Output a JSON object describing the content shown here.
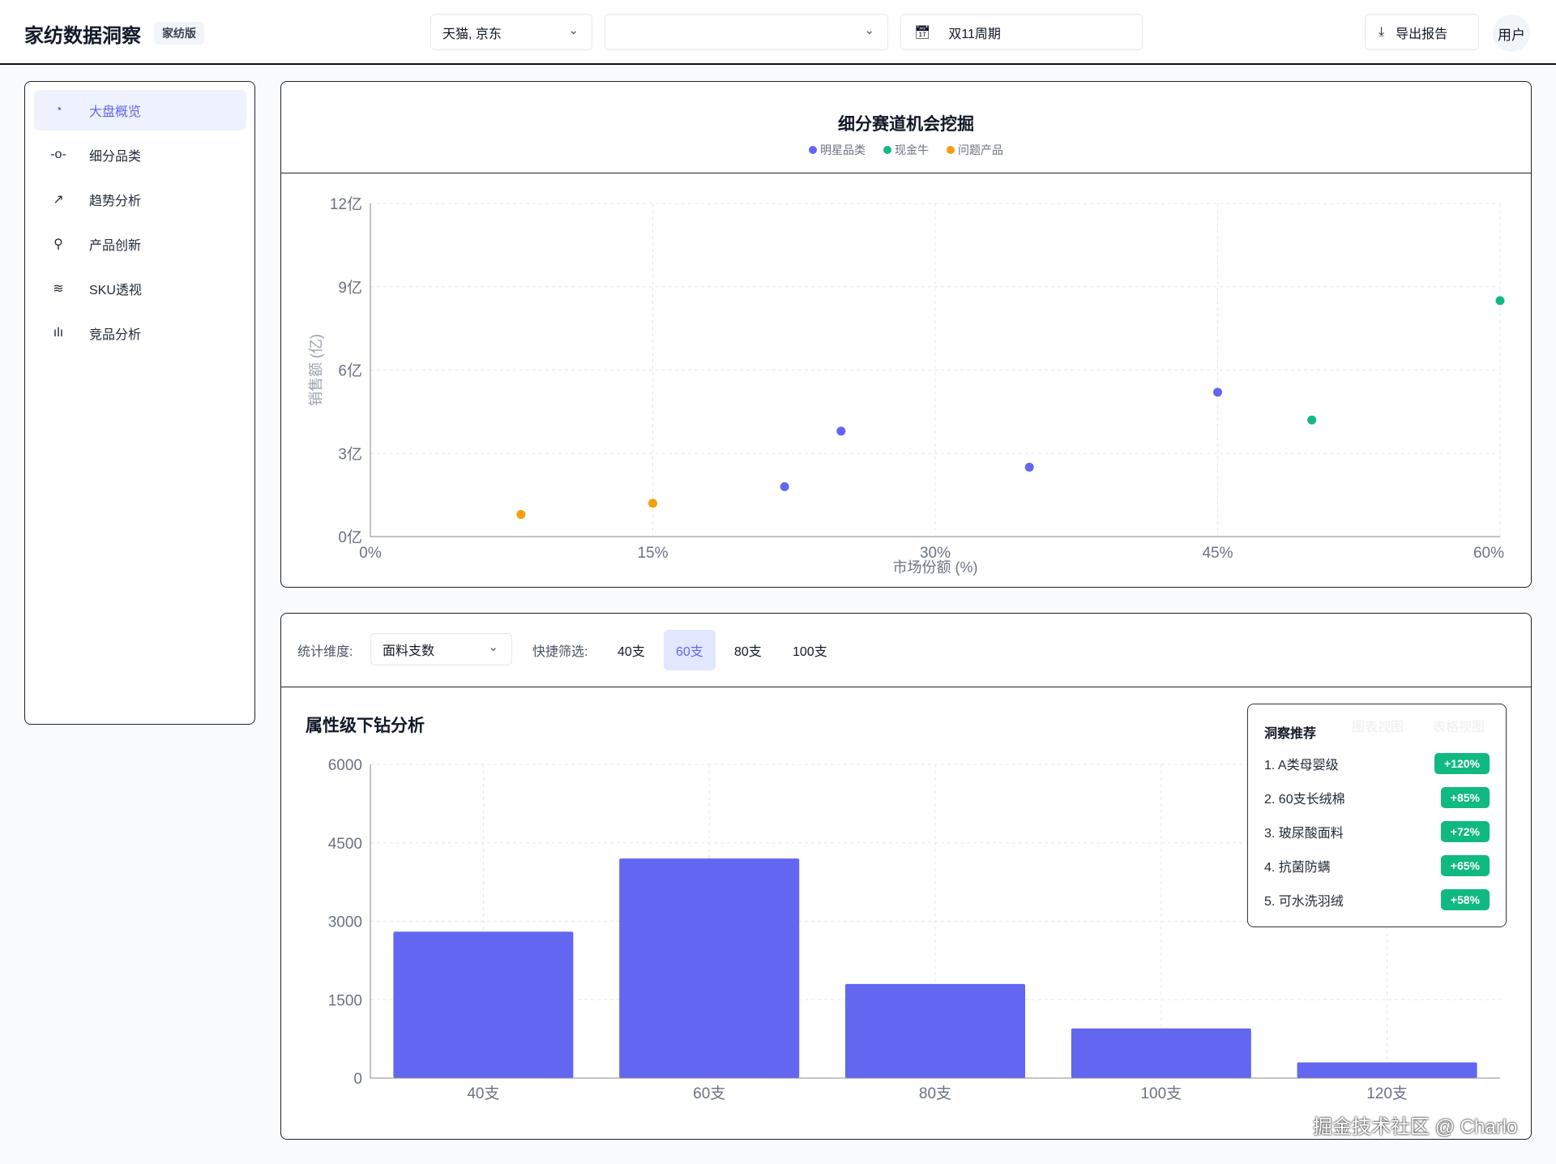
{
  "header": {
    "title": "家纺数据洞察",
    "edition_badge": "家纺版",
    "platform_select": "天猫, 京东",
    "second_select": "",
    "period": "双11周期",
    "export_label": "导出报告",
    "user_label": "用户"
  },
  "sidebar": {
    "items": [
      {
        "label": "大盘概览",
        "icon": "pie-chart-icon",
        "active": true
      },
      {
        "label": "细分品类",
        "icon": "commit-icon"
      },
      {
        "label": "趋势分析",
        "icon": "trending-up-icon"
      },
      {
        "label": "产品创新",
        "icon": "search-icon"
      },
      {
        "label": "SKU透视",
        "icon": "layers-icon"
      },
      {
        "label": "竞品分析",
        "icon": "bar-chart-icon"
      }
    ]
  },
  "filters": {
    "dimension_label": "统计维度:",
    "dimension_value": "面料支数",
    "quick_label": "快捷筛选:",
    "chips": [
      "40支",
      "60支",
      "80支",
      "100支"
    ],
    "active_chip": "60支"
  },
  "insights": {
    "title": "洞察推荐",
    "faded_tabs": [
      "图表视图",
      "表格视图"
    ],
    "items": [
      {
        "label": "1. A类母婴级",
        "value": "+120%"
      },
      {
        "label": "2. 60支长绒棉",
        "value": "+85%"
      },
      {
        "label": "3. 玻尿酸面料",
        "value": "+72%"
      },
      {
        "label": "4. 抗菌防螨",
        "value": "+65%"
      },
      {
        "label": "5. 可水洗羽绒",
        "value": "+58%"
      }
    ]
  },
  "watermark": "掘金技术社区 @ Charlo",
  "chart_data": [
    {
      "type": "scatter",
      "title": "细分赛道机会挖掘",
      "xlabel": "市场份额 (%)",
      "ylabel": "销售额 (亿)",
      "xlim": [
        0,
        60
      ],
      "ylim": [
        0,
        12
      ],
      "xticks": [
        "0%",
        "15%",
        "30%",
        "45%",
        "60%"
      ],
      "yticks": [
        "0亿",
        "3亿",
        "6亿",
        "9亿",
        "12亿"
      ],
      "grid": true,
      "legend": "top-center",
      "series": [
        {
          "name": "明星品类",
          "color": "#6366f1",
          "points": [
            [
              22,
              1.8
            ],
            [
              25,
              3.8
            ],
            [
              35,
              2.5
            ],
            [
              45,
              5.2
            ]
          ]
        },
        {
          "name": "现金牛",
          "color": "#10b981",
          "points": [
            [
              50,
              4.2
            ],
            [
              60,
              8.5
            ]
          ]
        },
        {
          "name": "问题产品",
          "color": "#f59e0b",
          "points": [
            [
              8,
              0.8
            ],
            [
              15,
              1.2
            ]
          ]
        }
      ]
    },
    {
      "type": "bar",
      "title": "属性级下钻分析",
      "categories": [
        "40支",
        "60支",
        "80支",
        "100支",
        "120支"
      ],
      "values": [
        2800,
        4200,
        1800,
        950,
        300
      ],
      "ylim": [
        0,
        6000
      ],
      "yticks": [
        "0",
        "1500",
        "3000",
        "4500",
        "6000"
      ],
      "color": "#6366f1",
      "grid": true
    }
  ]
}
